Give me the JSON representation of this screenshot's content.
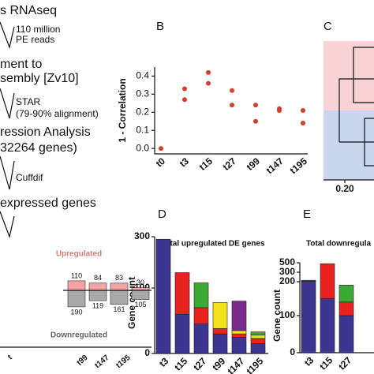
{
  "pipeline": {
    "steps": [
      "s RNAseq",
      "110 million",
      "PE reads",
      "ment to",
      "sembly [Zv10]",
      "STAR",
      "(79-90% alignment)",
      "ression Analysis",
      "32264 genes)",
      "Cuffdif",
      "expressed genes"
    ]
  },
  "dendrogram": {
    "panel_label": "C",
    "xticks": [
      {
        "value": 0.2,
        "label": "0.20"
      }
    ]
  },
  "chart_data": [
    {
      "type": "scatter",
      "panel_label": "B",
      "y_label": "1 - Correlation",
      "categories": [
        "t0",
        "t3",
        "t15",
        "t27",
        "t99",
        "t147",
        "t195"
      ],
      "series": [
        {
          "color": "#dd3a2e",
          "values": [
            0,
            0.33,
            0.42,
            0.32,
            0.24,
            0.22,
            0.21
          ]
        },
        {
          "color": "#dd3a2e",
          "values": [
            null,
            0.27,
            0.36,
            0.24,
            0.15,
            0.21,
            0.14
          ]
        }
      ],
      "ylim": [
        -0.03,
        0.45
      ],
      "yticks": [
        {
          "value": 0,
          "label": "0.0"
        },
        0.1,
        0.2,
        0.3,
        0.4
      ]
    },
    {
      "type": "stacked_bar",
      "panel_label": "D",
      "title": "Total upregulated DE genes",
      "y_label": "Gene count",
      "categories": [
        "t3",
        "t15",
        "t27",
        "t99",
        "t147",
        "t195"
      ],
      "series": [
        {
          "color": "#3b3490",
          "values": [
            290,
            60,
            45,
            30,
            25,
            15
          ]
        },
        {
          "color": "#e8231f",
          "values": [
            null,
            100,
            25,
            8,
            5,
            8
          ]
        },
        {
          "color": "#f2e21a",
          "values": [
            null,
            null,
            null,
            40,
            5,
            5
          ]
        },
        {
          "color": "#3aaa35",
          "values": [
            null,
            null,
            50,
            null,
            null,
            5
          ]
        },
        {
          "color": "#7a2a8a",
          "values": [
            null,
            null,
            null,
            null,
            45,
            null
          ]
        }
      ],
      "ylim": [
        0,
        300
      ],
      "yticks": [
        0,
        100,
        300
      ]
    },
    {
      "type": "stacked_bar",
      "panel_label": "E",
      "title": "Total downregula",
      "y_label": "Gene count",
      "categories": [
        "t3",
        "t15",
        "t27"
      ],
      "series": [
        {
          "color": "#3b3490",
          "values": [
            205,
            150,
            100
          ]
        },
        {
          "color": "#e8231f",
          "values": [
            10,
            330,
            40
          ]
        },
        {
          "color": "#3aaa35",
          "values": [
            null,
            null,
            50
          ]
        }
      ],
      "ylim": [
        0,
        500
      ],
      "yticks": [
        0,
        100,
        200,
        300,
        500
      ]
    },
    {
      "type": "diverging_bar",
      "categories": [
        "t",
        "t99",
        "t147",
        "t195"
      ],
      "series": [
        {
          "name": "Upregulated",
          "color": "#f3a3a3",
          "values": [
            110,
            84,
            83,
            30
          ]
        },
        {
          "name": "Downregulated",
          "color": "#a9a9a9",
          "values": [
            190,
            119,
            161,
            105
          ]
        }
      ]
    }
  ]
}
